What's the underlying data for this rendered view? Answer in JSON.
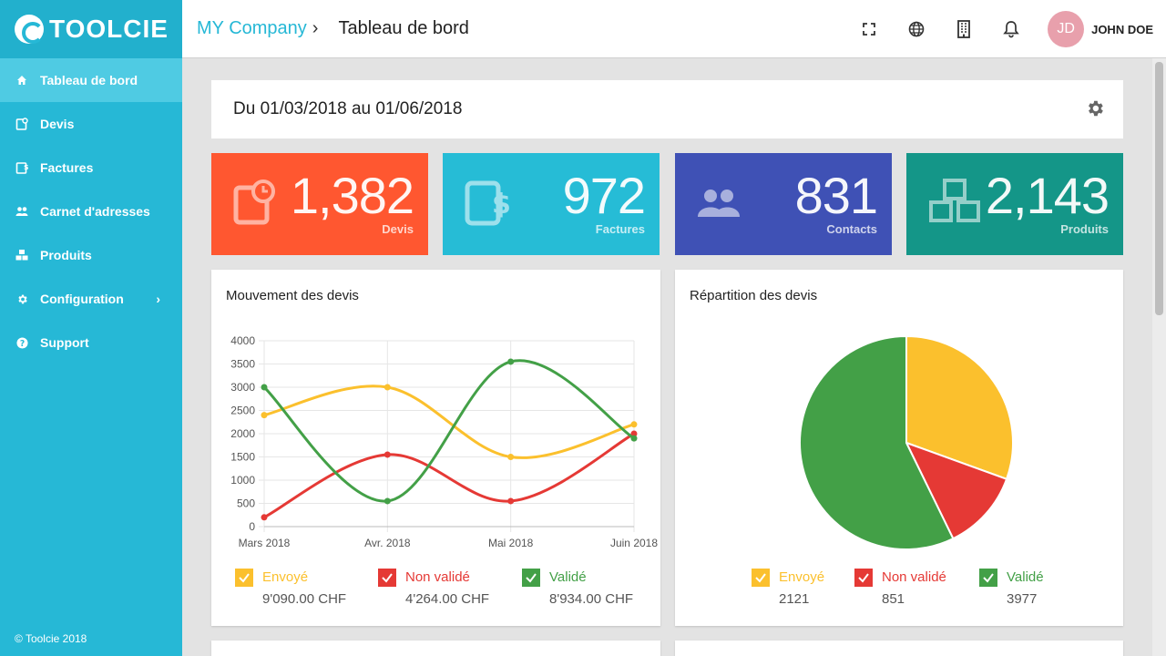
{
  "colors": {
    "sidebar": "#26b8d6",
    "devis": "#ff5730",
    "factures": "#26bcd6",
    "contacts": "#3f51b5",
    "produits": "#149688",
    "envoye": "#fbc02d",
    "non_valide": "#e53935",
    "valide": "#43a047"
  },
  "brand": {
    "name": "TOOLCIE"
  },
  "sidebar": {
    "items": [
      {
        "label": "Tableau de bord",
        "icon": "home-icon"
      },
      {
        "label": "Devis",
        "icon": "quote-icon"
      },
      {
        "label": "Factures",
        "icon": "invoice-icon"
      },
      {
        "label": "Carnet d'adresses",
        "icon": "people-icon"
      },
      {
        "label": "Produits",
        "icon": "cubes-icon"
      },
      {
        "label": "Configuration",
        "icon": "gear-icon"
      },
      {
        "label": "Support",
        "icon": "help-icon"
      }
    ],
    "footer": "© Toolcie 2018"
  },
  "header": {
    "company": "MY Company",
    "separator": "›",
    "title": "Tableau de bord",
    "user_initials": "JD",
    "user_name": "JOHN DOE"
  },
  "date_range": "Du 01/03/2018 au 01/06/2018",
  "stats": [
    {
      "value": "1,382",
      "label": "Devis"
    },
    {
      "value": "972",
      "label": "Factures"
    },
    {
      "value": "831",
      "label": "Contacts"
    },
    {
      "value": "2,143",
      "label": "Produits"
    }
  ],
  "line_card": {
    "title": "Mouvement des devis",
    "legend": [
      {
        "name": "Envoyé",
        "value": "9'090.00 CHF"
      },
      {
        "name": "Non validé",
        "value": "4'264.00 CHF"
      },
      {
        "name": "Validé",
        "value": "8'934.00 CHF"
      }
    ]
  },
  "pie_card": {
    "title": "Répartition des devis",
    "legend": [
      {
        "name": "Envoyé",
        "value": "2121"
      },
      {
        "name": "Non validé",
        "value": "851"
      },
      {
        "name": "Validé",
        "value": "3977"
      }
    ]
  },
  "chart_data": [
    {
      "type": "line",
      "title": "Mouvement des devis",
      "categories": [
        "Mars 2018",
        "Avr. 2018",
        "Mai 2018",
        "Juin 2018"
      ],
      "ylim": [
        0,
        4000
      ],
      "yticks": [
        0,
        500,
        1000,
        1500,
        2000,
        2500,
        3000,
        3500,
        4000
      ],
      "grid": true,
      "series": [
        {
          "name": "Envoyé",
          "color": "#fbc02d",
          "values": [
            2400,
            3000,
            1500,
            2200
          ]
        },
        {
          "name": "Non validé",
          "color": "#e53935",
          "values": [
            200,
            1550,
            550,
            2000
          ]
        },
        {
          "name": "Validé",
          "color": "#43a047",
          "values": [
            3000,
            550,
            3550,
            1900
          ]
        }
      ]
    },
    {
      "type": "pie",
      "title": "Répartition des devis",
      "series": [
        {
          "name": "Envoyé",
          "color": "#fbc02d",
          "value": 2121
        },
        {
          "name": "Non validé",
          "color": "#e53935",
          "value": 851
        },
        {
          "name": "Validé",
          "color": "#43a047",
          "value": 3977
        }
      ]
    }
  ]
}
